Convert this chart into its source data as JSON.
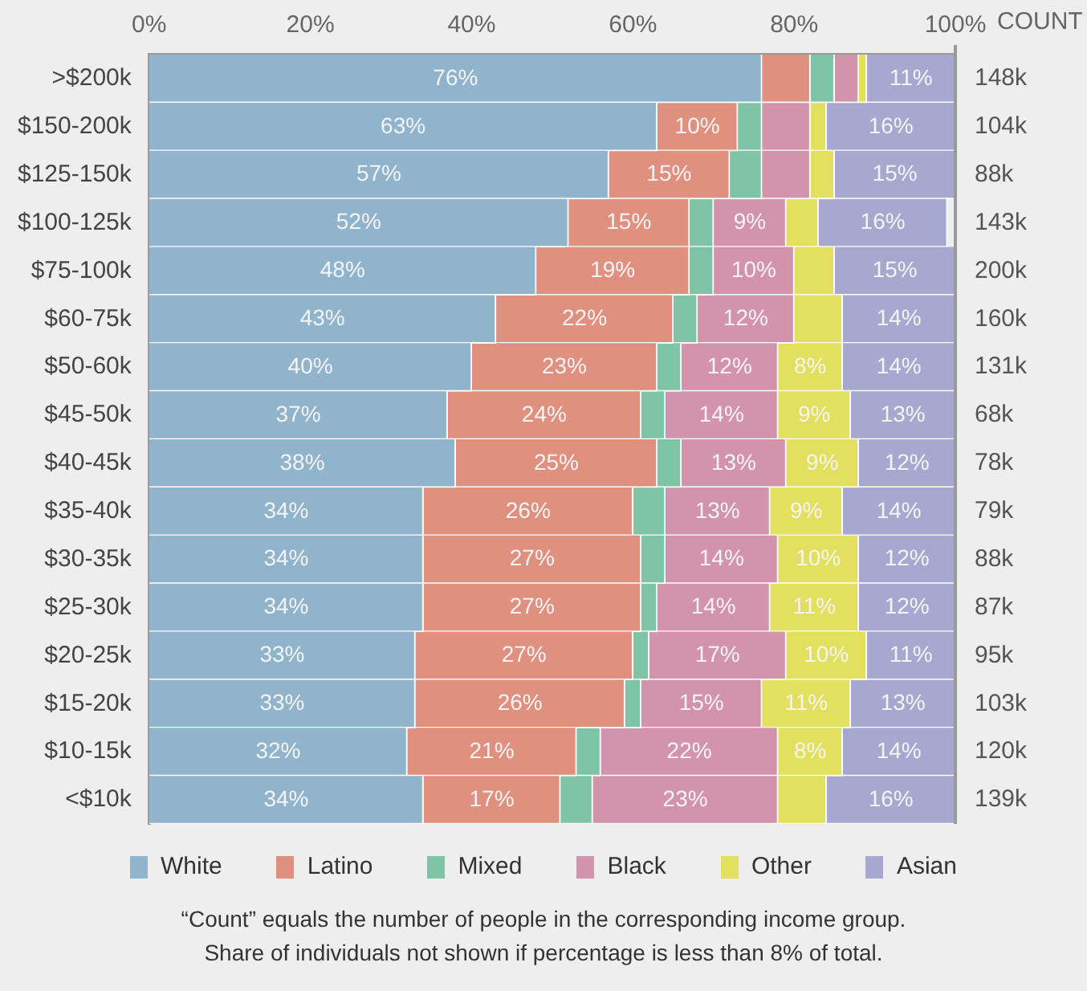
{
  "chart_data": {
    "type": "bar",
    "orientation": "horizontal",
    "stacked": true,
    "categories": [
      ">$200k",
      "$150-200k",
      "$125-150k",
      "$100-125k",
      "$75-100k",
      "$60-75k",
      "$50-60k",
      "$45-50k",
      "$40-45k",
      "$35-40k",
      "$30-35k",
      "$25-30k",
      "$20-25k",
      "$15-20k",
      "$10-15k",
      "<$10k"
    ],
    "series": [
      {
        "name": "White",
        "color": "#8fb4cc",
        "values": [
          76,
          63,
          57,
          52,
          48,
          43,
          40,
          37,
          38,
          34,
          34,
          34,
          33,
          33,
          32,
          34
        ],
        "value_labels": [
          "76%",
          "63%",
          "57%",
          "52%",
          "48%",
          "43%",
          "40%",
          "37%",
          "38%",
          "34%",
          "34%",
          "34%",
          "33%",
          "33%",
          "32%",
          "34%"
        ]
      },
      {
        "name": "Latino",
        "color": "#e0907e",
        "values": [
          6,
          10,
          15,
          15,
          19,
          22,
          23,
          24,
          25,
          26,
          27,
          27,
          27,
          26,
          21,
          17
        ],
        "value_labels": [
          null,
          "10%",
          "15%",
          "15%",
          "19%",
          "22%",
          "23%",
          "24%",
          "25%",
          "26%",
          "27%",
          "27%",
          "27%",
          "26%",
          "21%",
          "17%"
        ]
      },
      {
        "name": "Mixed",
        "color": "#7ec4a6",
        "values": [
          3,
          3,
          4,
          3,
          3,
          3,
          3,
          3,
          3,
          4,
          3,
          2,
          2,
          2,
          3,
          4
        ],
        "value_labels": [
          null,
          null,
          null,
          null,
          null,
          null,
          null,
          null,
          null,
          null,
          null,
          null,
          null,
          null,
          null,
          null
        ]
      },
      {
        "name": "Black",
        "color": "#d394ab",
        "values": [
          3,
          6,
          6,
          9,
          10,
          12,
          12,
          14,
          13,
          13,
          14,
          14,
          17,
          15,
          22,
          23
        ],
        "value_labels": [
          null,
          null,
          null,
          "9%",
          "10%",
          "12%",
          "12%",
          "14%",
          "13%",
          "13%",
          "14%",
          "14%",
          "17%",
          "15%",
          "22%",
          "23%"
        ]
      },
      {
        "name": "Other",
        "color": "#e2e05e",
        "values": [
          1,
          2,
          3,
          4,
          5,
          6,
          8,
          9,
          9,
          9,
          10,
          11,
          10,
          11,
          8,
          6
        ],
        "value_labels": [
          null,
          null,
          null,
          null,
          null,
          null,
          "8%",
          "9%",
          "9%",
          "9%",
          "10%",
          "11%",
          "10%",
          "11%",
          "8%",
          null
        ]
      },
      {
        "name": "Asian",
        "color": "#a6a8d0",
        "values": [
          11,
          16,
          15,
          16,
          15,
          14,
          14,
          13,
          12,
          14,
          12,
          12,
          11,
          13,
          14,
          16
        ],
        "value_labels": [
          "11%",
          "16%",
          "15%",
          "16%",
          "15%",
          "14%",
          "14%",
          "13%",
          "12%",
          "14%",
          "12%",
          "12%",
          "11%",
          "13%",
          "14%",
          "16%"
        ]
      }
    ],
    "xlim": [
      0,
      100
    ],
    "xticks": [
      {
        "value": 0,
        "label": "0%"
      },
      {
        "value": 20,
        "label": "20%"
      },
      {
        "value": 40,
        "label": "40%"
      },
      {
        "value": 60,
        "label": "60%"
      },
      {
        "value": 80,
        "label": "80%"
      },
      {
        "value": 100,
        "label": "100%"
      }
    ],
    "y2label": "COUNT",
    "grid": false,
    "legend": "bottom",
    "annotations": [
      "148k",
      "104k",
      "88k",
      "143k",
      "200k",
      "160k",
      "131k",
      "68k",
      "78k",
      "79k",
      "88k",
      "87k",
      "95k",
      "103k",
      "120k",
      "139k",
      "“Count” equals the number of people in the corresponding income group.",
      "Share of individuals not shown if percentage is less than 8% of total."
    ]
  }
}
